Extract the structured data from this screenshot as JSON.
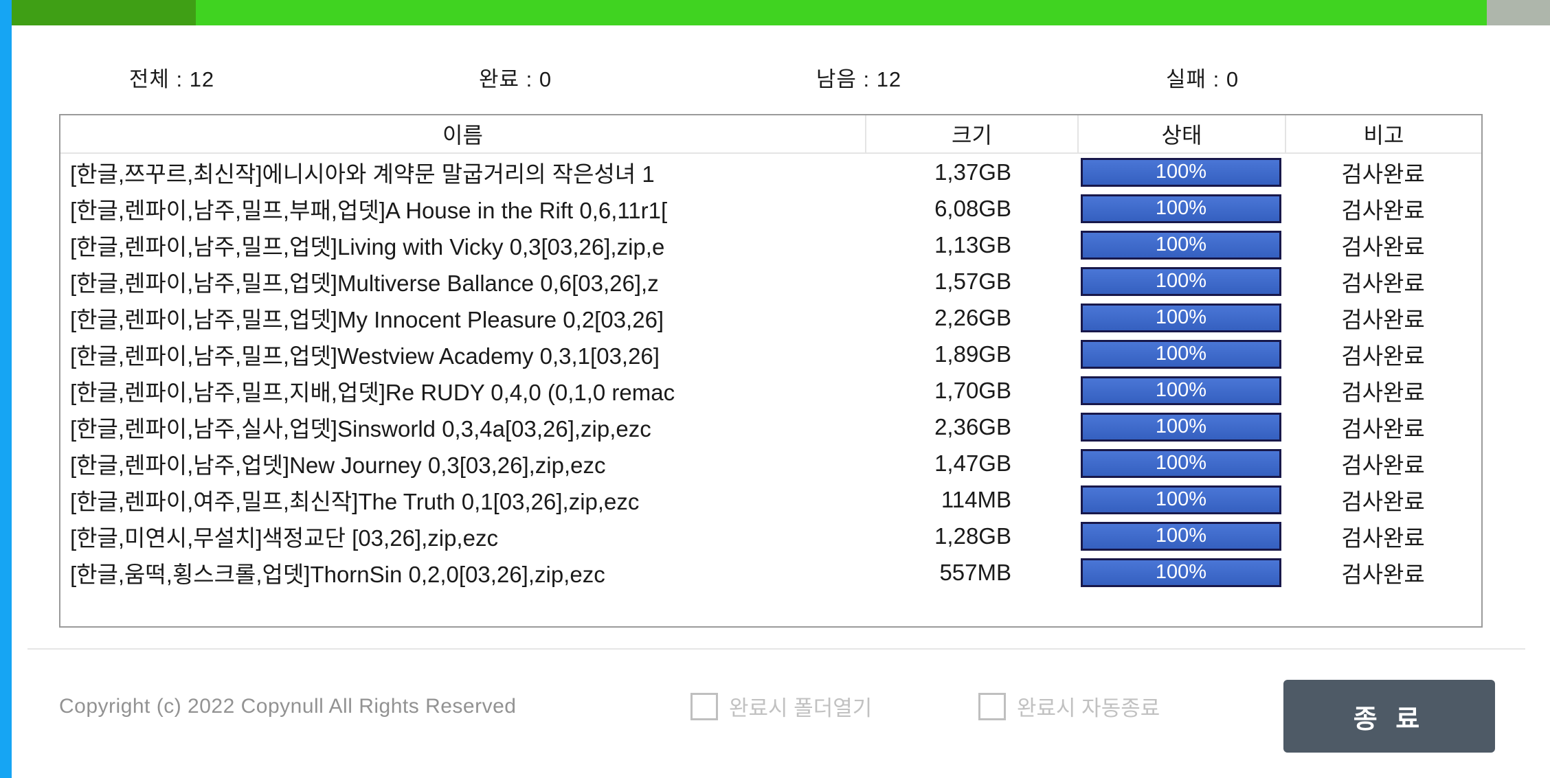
{
  "colors": {
    "accent_strip_blue": "#16a5f3",
    "progress_green_dark": "#3f9f15",
    "progress_green_bright": "#40d321",
    "progress_remaining_gray": "#aeb6ab",
    "row_progress_blue": "#3c69c9",
    "row_progress_border": "#18184a",
    "exit_button_bg": "#4e5a66"
  },
  "stats": [
    "전체 : 12",
    "완료 : 0",
    "남음 : 12",
    "실패 : 0"
  ],
  "table": {
    "headers": [
      "이름",
      "크기",
      "상태",
      "비고"
    ],
    "rows": [
      {
        "name": "[한글,쯔꾸르,최신작]에니시아와 계약문 말굽거리의 작은성녀 1",
        "size": "1,37GB",
        "progress": "100%",
        "percent": 100,
        "remark": "검사완료"
      },
      {
        "name": "[한글,렌파이,남주,밀프,부패,업뎃]A House in the Rift 0,6,11r1[",
        "size": "6,08GB",
        "progress": "100%",
        "percent": 100,
        "remark": "검사완료"
      },
      {
        "name": "[한글,렌파이,남주,밀프,업뎃]Living with Vicky 0,3[03,26],zip,e",
        "size": "1,13GB",
        "progress": "100%",
        "percent": 100,
        "remark": "검사완료"
      },
      {
        "name": "[한글,렌파이,남주,밀프,업뎃]Multiverse Ballance 0,6[03,26],z",
        "size": "1,57GB",
        "progress": "100%",
        "percent": 100,
        "remark": "검사완료"
      },
      {
        "name": "[한글,렌파이,남주,밀프,업뎃]My Innocent Pleasure 0,2[03,26]",
        "size": "2,26GB",
        "progress": "100%",
        "percent": 100,
        "remark": "검사완료"
      },
      {
        "name": "[한글,렌파이,남주,밀프,업뎃]Westview Academy 0,3,1[03,26]",
        "size": "1,89GB",
        "progress": "100%",
        "percent": 100,
        "remark": "검사완료"
      },
      {
        "name": "[한글,렌파이,남주,밀프,지배,업뎃]Re RUDY 0,4,0 (0,1,0 remac",
        "size": "1,70GB",
        "progress": "100%",
        "percent": 100,
        "remark": "검사완료"
      },
      {
        "name": "[한글,렌파이,남주,실사,업뎃]Sinsworld 0,3,4a[03,26],zip,ezc",
        "size": "2,36GB",
        "progress": "100%",
        "percent": 100,
        "remark": "검사완료"
      },
      {
        "name": "[한글,렌파이,남주,업뎃]New Journey 0,3[03,26],zip,ezc",
        "size": "1,47GB",
        "progress": "100%",
        "percent": 100,
        "remark": "검사완료"
      },
      {
        "name": "[한글,렌파이,여주,밀프,최신작]The Truth 0,1[03,26],zip,ezc",
        "size": "114MB",
        "progress": "100%",
        "percent": 100,
        "remark": "검사완료"
      },
      {
        "name": "[한글,미연시,무설치]색정교단 [03,26],zip,ezc",
        "size": "1,28GB",
        "progress": "100%",
        "percent": 100,
        "remark": "검사완료"
      },
      {
        "name": "[한글,움떡,횡스크롤,업뎃]ThornSin 0,2,0[03,26],zip,ezc",
        "size": "557MB",
        "progress": "100%",
        "percent": 100,
        "remark": "검사완료"
      }
    ]
  },
  "footer": {
    "copyright": "Copyright (c) 2022 Copynull All Rights Reserved",
    "checkbox_open_folder": {
      "label": "완료시 폴더열기",
      "checked": false
    },
    "checkbox_auto_exit": {
      "label": "완료시 자동종료",
      "checked": false
    },
    "exit_button": "종 료"
  }
}
